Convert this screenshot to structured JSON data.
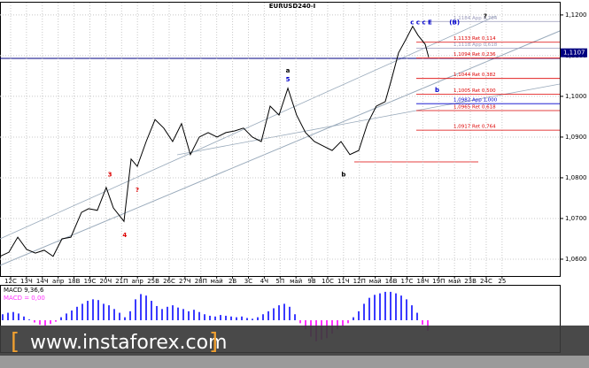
{
  "chart_data": [
    {
      "type": "line",
      "title": "EURUSD240-I",
      "color": "#000000",
      "grid": true,
      "x": [
        -0.67,
        -0.11,
        0.45,
        1.01,
        1.56,
        2.12,
        2.68,
        3.24,
        3.8,
        4.47,
        4.92,
        5.47,
        6.03,
        6.48,
        7.15,
        7.6,
        7.99,
        8.55,
        9.11,
        9.66,
        10.22,
        10.78,
        11.34,
        11.9,
        12.46,
        13.02,
        13.58,
        14.13,
        14.69,
        15.25,
        15.81,
        16.37,
        16.93,
        17.49,
        18.04,
        18.6,
        19.16,
        19.72,
        20.28,
        20.84,
        21.4,
        21.96,
        22.51,
        23.07,
        23.63,
        24.02,
        24.47,
        24.92,
        25.36,
        25.7,
        26.15,
        26.37
      ],
      "values": [
        1.0607,
        1.0617,
        1.0654,
        1.0624,
        1.0615,
        1.0622,
        1.0607,
        1.065,
        1.0654,
        1.0715,
        1.0724,
        1.072,
        1.0776,
        1.0726,
        1.0693,
        1.0846,
        1.0828,
        1.0889,
        1.0943,
        1.0922,
        1.0889,
        1.0933,
        1.0857,
        1.09,
        1.0911,
        1.09,
        1.0911,
        1.0915,
        1.0922,
        1.09,
        1.0889,
        1.0976,
        1.0954,
        1.102,
        1.0954,
        1.0911,
        1.0889,
        1.0878,
        1.0867,
        1.0889,
        1.0857,
        1.0867,
        1.0933,
        1.0976,
        1.0987,
        1.1041,
        1.1107,
        1.1139,
        1.1172,
        1.115,
        1.1128,
        1.1096
      ],
      "xlim": [
        -0.67,
        34.64
      ],
      "ylim": [
        1.0563,
        1.1215
      ],
      "yticks": [
        {
          "value": 1.06,
          "label": "1,0600"
        },
        {
          "value": 1.07,
          "label": "1,0700"
        },
        {
          "value": 1.08,
          "label": "1,0800"
        },
        {
          "value": 1.09,
          "label": "1,0900"
        },
        {
          "value": 1.1,
          "label": "1,1000"
        },
        {
          "value": 1.11,
          "label": "1,1100"
        },
        {
          "value": 1.12,
          "label": "1,1200"
        }
      ],
      "xticks": [
        {
          "value": 0,
          "label": "12С"
        },
        {
          "value": 1,
          "label": "13Ч"
        },
        {
          "value": 2,
          "label": "14Ч"
        },
        {
          "value": 3,
          "label": "апр"
        },
        {
          "value": 4,
          "label": "18В"
        },
        {
          "value": 5,
          "label": "19С"
        },
        {
          "value": 6,
          "label": "20Ч"
        },
        {
          "value": 7,
          "label": "21П"
        },
        {
          "value": 8,
          "label": "апр"
        },
        {
          "value": 9,
          "label": "25В"
        },
        {
          "value": 10,
          "label": "26С"
        },
        {
          "value": 11,
          "label": "27Ч"
        },
        {
          "value": 12,
          "label": "28П"
        },
        {
          "value": 13,
          "label": "май"
        },
        {
          "value": 14,
          "label": "2В"
        },
        {
          "value": 15,
          "label": "3С"
        },
        {
          "value": 16,
          "label": "4Ч"
        },
        {
          "value": 17,
          "label": "5П"
        },
        {
          "value": 18,
          "label": "май"
        },
        {
          "value": 19,
          "label": "9В"
        },
        {
          "value": 20,
          "label": "10С"
        },
        {
          "value": 21,
          "label": "11Ч"
        },
        {
          "value": 22,
          "label": "12П"
        },
        {
          "value": 23,
          "label": "май"
        },
        {
          "value": 24,
          "label": "16В"
        },
        {
          "value": 25,
          "label": "17С"
        },
        {
          "value": 26,
          "label": "18Ч"
        },
        {
          "value": 27,
          "label": "19П"
        },
        {
          "value": 28,
          "label": "май"
        },
        {
          "value": 29,
          "label": "23В"
        },
        {
          "value": 30,
          "label": "24С"
        },
        {
          "value": 31,
          "label": "25"
        }
      ],
      "last_price": {
        "value": 1.1107,
        "label": "1,1107"
      },
      "levels": [
        {
          "value": 1.1184,
          "label": "1,1184 App 0,764",
          "color": "#9999bb"
        },
        {
          "value": 1.1133,
          "label": "1,1133 Ret 0,114",
          "color": "#dd0000"
        },
        {
          "value": 1.1118,
          "label": "1,1118 App 0,618",
          "color": "#9999bb"
        },
        {
          "value": 1.1094,
          "label": "1,1094 Ret 0,236",
          "color": "#dd0000"
        },
        {
          "value": 1.1044,
          "label": "1,1044 Ret 0,382",
          "color": "#dd0000"
        },
        {
          "value": 1.1005,
          "label": "1,1005 Ret 0,500",
          "color": "#dd0000"
        },
        {
          "value": 1.0982,
          "label": "1,0982 App 1,000",
          "color": "#0000cc"
        },
        {
          "value": 1.0965,
          "label": "1,0965 Ret 0,618",
          "color": "#dd0000"
        },
        {
          "value": 1.0917,
          "label": "1,0917 Ret 0,764",
          "color": "#dd0000"
        }
      ],
      "annotations": [
        {
          "text": "a",
          "x": 17.49,
          "y": 1.1063,
          "color": "#000000"
        },
        {
          "text": "5",
          "x": 17.49,
          "y": 1.1041,
          "color": "#0000cc"
        },
        {
          "text": "b",
          "x": 21.0,
          "y": 1.0807,
          "color": "#000000"
        },
        {
          "text": "?",
          "x": 7.99,
          "y": 1.077,
          "color": "#dd0000"
        },
        {
          "text": "3",
          "x": 6.26,
          "y": 1.0807,
          "color": "#dd0000"
        },
        {
          "text": "4",
          "x": 7.2,
          "y": 1.0659,
          "color": "#dd0000"
        },
        {
          "text": "c c c E",
          "x": 25.9,
          "y": 1.1181,
          "color": "#0000cc"
        },
        {
          "text": "(B)",
          "x": 28.0,
          "y": 1.1181,
          "color": "#0000cc"
        },
        {
          "text": "?",
          "x": 29.94,
          "y": 1.1197,
          "color": "#000000"
        },
        {
          "text": "b",
          "x": 26.9,
          "y": 1.1015,
          "color": "#0000cc"
        }
      ]
    },
    {
      "type": "bar",
      "title": "MACD 9,36,6",
      "subtitle": "MACD = 0,00",
      "color": "#3b3bff",
      "negative_color": "#ff33ff",
      "ylim": [
        -0.0045,
        0.0045
      ],
      "values": [
        0.0008,
        0.001,
        0.0011,
        0.0009,
        0.0005,
        0.0001,
        -0.0003,
        -0.0006,
        -0.0007,
        -0.0005,
        -0.0002,
        0.0004,
        0.0009,
        0.0013,
        0.0018,
        0.0022,
        0.0026,
        0.0028,
        0.0027,
        0.0022,
        0.002,
        0.0015,
        0.001,
        0.0004,
        0.0012,
        0.0028,
        0.0035,
        0.0033,
        0.0026,
        0.0019,
        0.0015,
        0.0018,
        0.002,
        0.0017,
        0.0015,
        0.0012,
        0.0014,
        0.0011,
        0.0008,
        0.0006,
        0.0005,
        0.0007,
        0.0006,
        0.0005,
        0.0004,
        0.0005,
        0.0003,
        0.0002,
        0.0004,
        0.0008,
        0.0012,
        0.0016,
        0.002,
        0.0022,
        0.0018,
        0.0008,
        -0.0004,
        -0.0012,
        -0.0022,
        -0.0028,
        -0.0026,
        -0.0024,
        -0.0018,
        -0.0012,
        -0.0008,
        -0.0004,
        0.0004,
        0.0012,
        0.0022,
        0.003,
        0.0034,
        0.0036,
        0.0038,
        0.0038,
        0.0036,
        0.0033,
        0.0028,
        0.002,
        0.001,
        -0.0006,
        -0.0014
      ]
    }
  ],
  "watermark": "www.instaforex.com"
}
